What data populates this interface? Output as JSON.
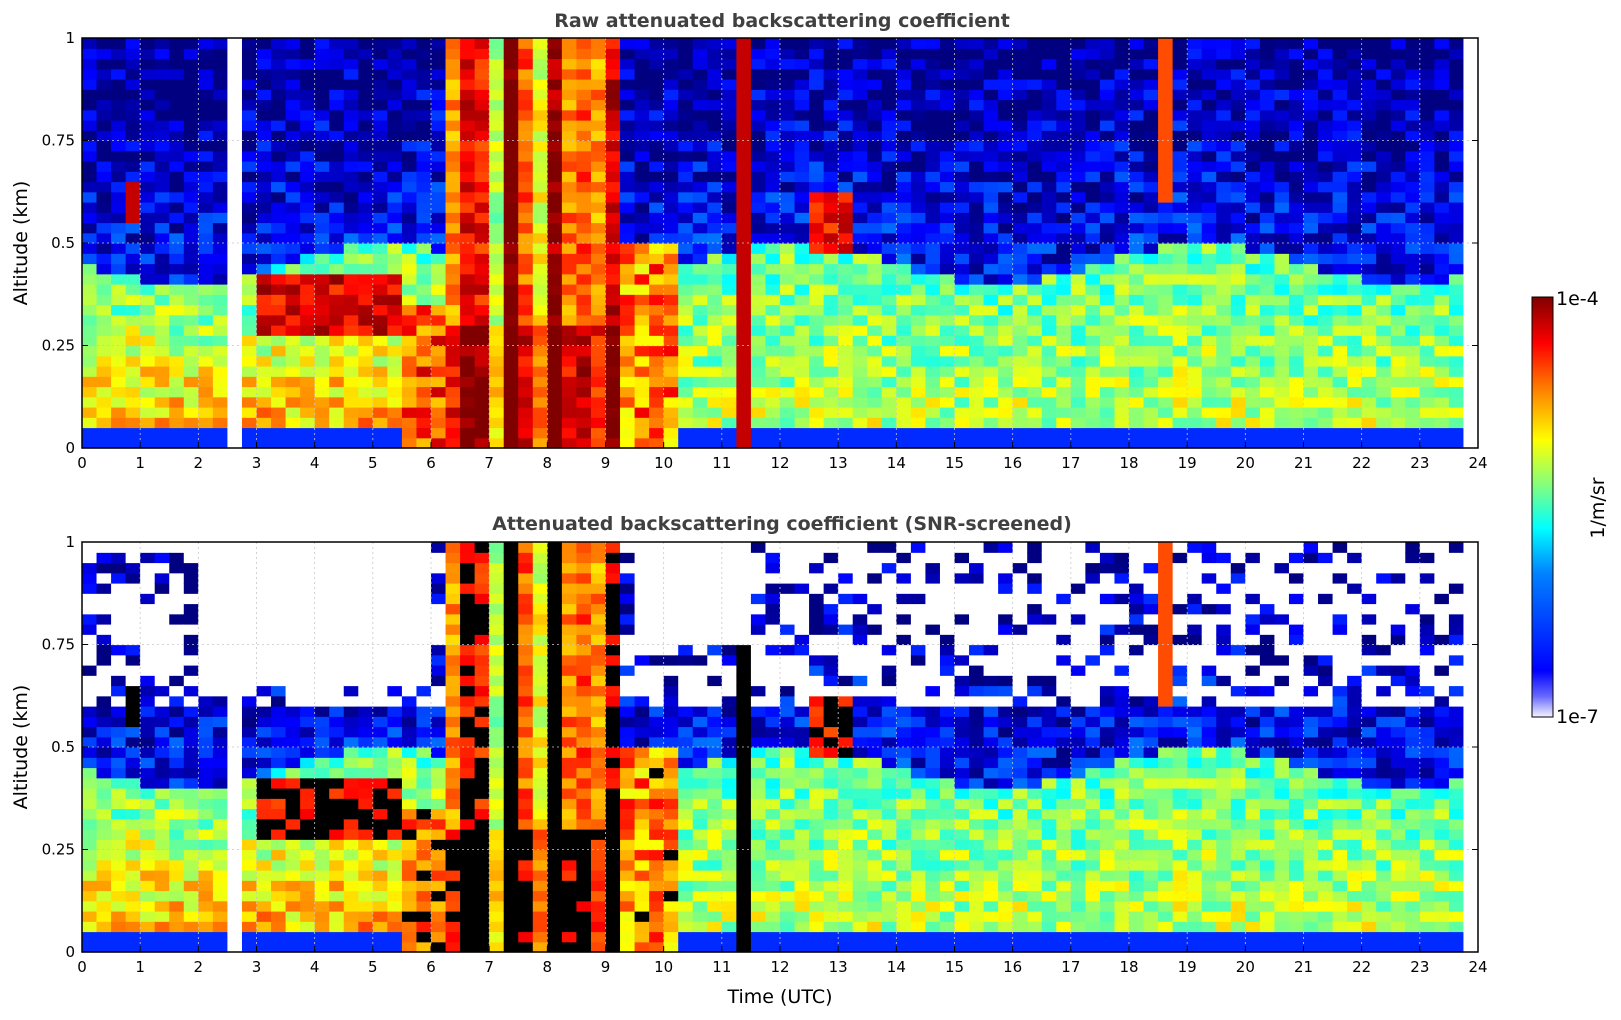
{
  "figure": {
    "xlabel": "Time (UTC)",
    "colorbar": {
      "label": "1/m/sr",
      "max_label": "1e-4",
      "min_label": "1e-7",
      "scale": "log",
      "colormap": "jet"
    },
    "colors": {
      "background": "#ffffff",
      "title": "#404040",
      "grid": "#c8c8c8",
      "screened_high": "#000000"
    }
  },
  "chart_data": [
    {
      "type": "heatmap",
      "title": "Raw attenuated backscattering coefficient",
      "xlabel": "",
      "ylabel": "Altitude (km)",
      "xlim": [
        0,
        24
      ],
      "ylim": [
        0,
        1
      ],
      "xticks": [
        "0",
        "1",
        "2",
        "3",
        "4",
        "5",
        "6",
        "7",
        "8",
        "9",
        "10",
        "11",
        "12",
        "13",
        "14",
        "15",
        "16",
        "17",
        "18",
        "19",
        "20",
        "21",
        "22",
        "23",
        "24"
      ],
      "yticks": [
        "0",
        "0.25",
        "0.5",
        "0.75",
        "1"
      ],
      "grid": true,
      "z_range": [
        1e-07,
        0.0001
      ],
      "z_units": "1/m/sr",
      "features": {
        "low_cloud_layer": {
          "time": [
            3.0,
            5.6
          ],
          "altitude": [
            0.28,
            0.42
          ],
          "log10_value": -4.2
        },
        "precipitation_column": {
          "time": [
            6.2,
            9.3
          ],
          "altitude": [
            0,
            1
          ],
          "log10_value": -4.4
        },
        "boundary_layer_top_km": 0.45,
        "narrow_column": {
          "time": [
            11.35,
            11.55
          ],
          "log10_value": -4.2
        }
      }
    },
    {
      "type": "heatmap",
      "title": "Attenuated backscattering coefficient (SNR-screened)",
      "xlabel": "Time (UTC)",
      "ylabel": "Altitude (km)",
      "xlim": [
        0,
        24
      ],
      "ylim": [
        0,
        1
      ],
      "xticks": [
        "0",
        "1",
        "2",
        "3",
        "4",
        "5",
        "6",
        "7",
        "8",
        "9",
        "10",
        "11",
        "12",
        "13",
        "14",
        "15",
        "16",
        "17",
        "18",
        "19",
        "20",
        "21",
        "22",
        "23",
        "24"
      ],
      "yticks": [
        "0",
        "0.25",
        "0.5",
        "0.75",
        "1"
      ],
      "grid": true,
      "z_range": [
        1e-07,
        0.0001
      ],
      "z_units": "1/m/sr",
      "screening": "low SNR pixels removed (white); saturated cloud cores shown black"
    }
  ]
}
